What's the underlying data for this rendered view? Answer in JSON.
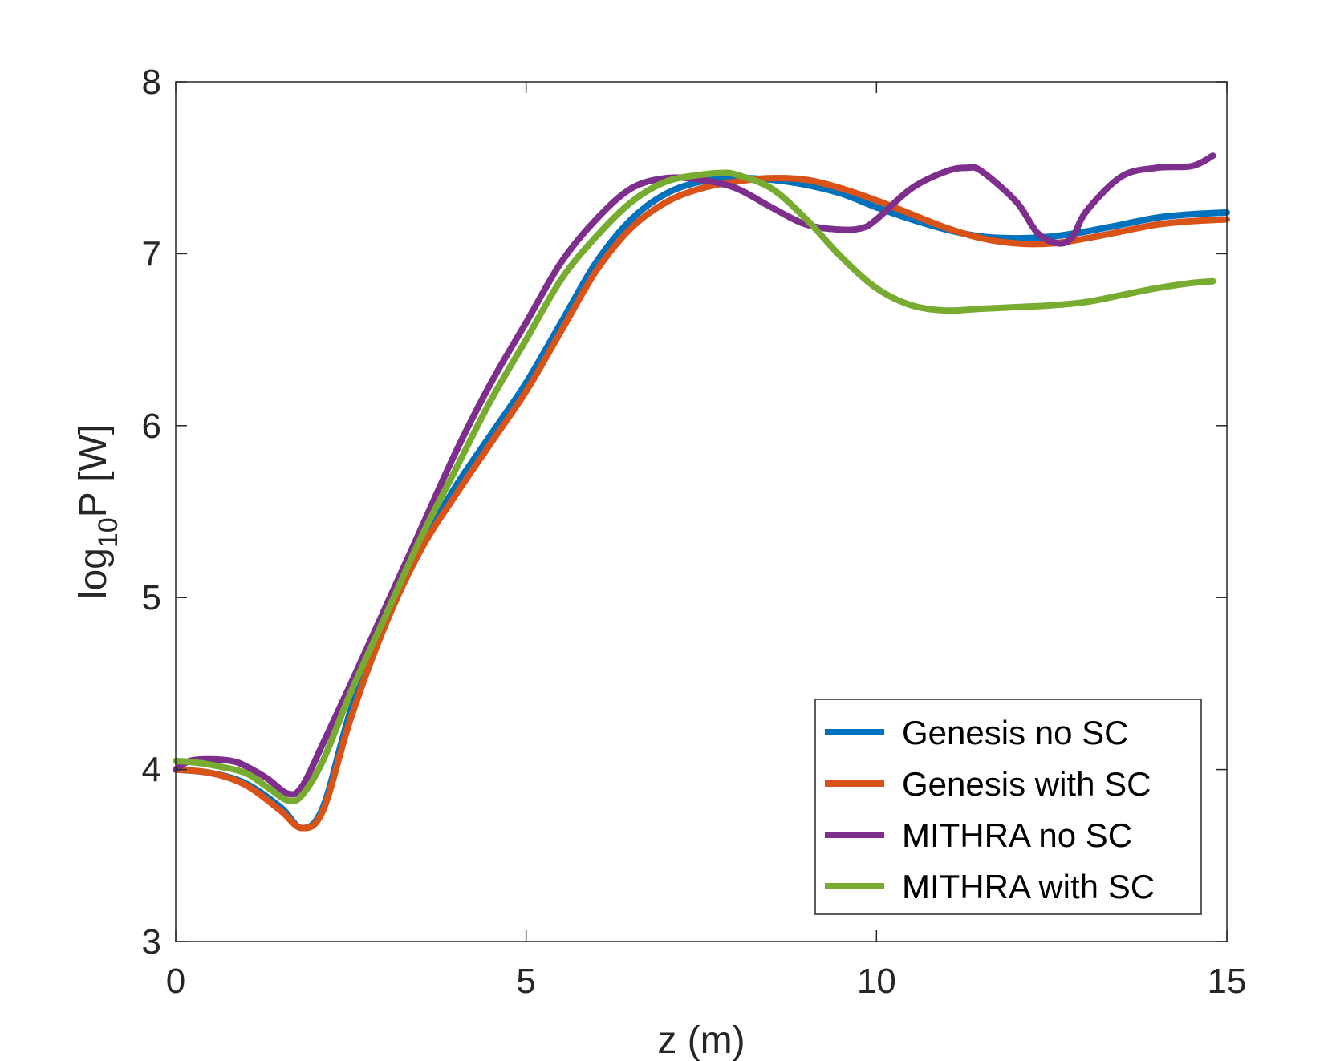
{
  "chart_data": {
    "type": "line",
    "title": "",
    "xlabel": "z (m)",
    "ylabel": {
      "prefix": "log",
      "subscript": "10",
      "suffix": "P [W]"
    },
    "xlim": [
      0,
      15
    ],
    "ylim": [
      3,
      8
    ],
    "xticks": [
      "0",
      "5",
      "10",
      "15"
    ],
    "yticks": [
      "3",
      "4",
      "5",
      "6",
      "7",
      "8"
    ],
    "grid": false,
    "legend_position": "bottom-right",
    "series": [
      {
        "name": "Genesis no SC",
        "color": "#0072BD",
        "x": [
          0,
          0.5,
          1.0,
          1.5,
          1.8,
          2.1,
          2.5,
          3.0,
          3.5,
          4.0,
          4.5,
          5.0,
          5.5,
          6.0,
          6.5,
          7.0,
          7.5,
          8.0,
          8.5,
          9.0,
          9.5,
          10.0,
          10.5,
          11.0,
          11.5,
          12.0,
          12.5,
          13.0,
          13.5,
          14.0,
          14.5,
          15.0
        ],
        "y": [
          4.0,
          3.98,
          3.92,
          3.78,
          3.66,
          3.78,
          4.35,
          4.9,
          5.3,
          5.65,
          5.95,
          6.25,
          6.6,
          6.95,
          7.2,
          7.35,
          7.42,
          7.44,
          7.43,
          7.4,
          7.35,
          7.27,
          7.2,
          7.14,
          7.1,
          7.09,
          7.1,
          7.13,
          7.17,
          7.21,
          7.23,
          7.24
        ]
      },
      {
        "name": "Genesis with SC",
        "color": "#D95319",
        "x": [
          0,
          0.5,
          1.0,
          1.5,
          1.8,
          2.1,
          2.5,
          3.0,
          3.5,
          4.0,
          4.5,
          5.0,
          5.5,
          6.0,
          6.5,
          7.0,
          7.5,
          8.0,
          8.5,
          9.0,
          9.5,
          10.0,
          10.5,
          11.0,
          11.5,
          12.0,
          12.5,
          13.0,
          13.5,
          14.0,
          14.5,
          15.0
        ],
        "y": [
          4.0,
          3.98,
          3.91,
          3.76,
          3.66,
          3.76,
          4.3,
          4.85,
          5.28,
          5.6,
          5.9,
          6.2,
          6.55,
          6.9,
          7.15,
          7.3,
          7.38,
          7.42,
          7.44,
          7.43,
          7.38,
          7.31,
          7.23,
          7.15,
          7.09,
          7.06,
          7.06,
          7.09,
          7.13,
          7.17,
          7.19,
          7.2
        ]
      },
      {
        "name": "MITHRA no SC",
        "color": "#7E2F8E",
        "x": [
          0,
          0.2,
          0.5,
          0.8,
          1.0,
          1.3,
          1.6,
          1.8,
          2.1,
          2.5,
          3.0,
          3.5,
          4.0,
          4.5,
          5.0,
          5.5,
          6.0,
          6.5,
          7.0,
          7.5,
          8.0,
          8.5,
          9.0,
          9.5,
          9.8,
          10.0,
          10.5,
          11.0,
          11.3,
          11.5,
          12.0,
          12.3,
          12.6,
          12.8,
          13.0,
          13.5,
          14.0,
          14.5,
          14.8
        ],
        "y": [
          4.0,
          4.05,
          4.06,
          4.05,
          4.02,
          3.95,
          3.86,
          3.9,
          4.15,
          4.5,
          4.95,
          5.4,
          5.85,
          6.25,
          6.6,
          6.95,
          7.2,
          7.38,
          7.44,
          7.43,
          7.38,
          7.27,
          7.17,
          7.14,
          7.15,
          7.2,
          7.38,
          7.48,
          7.5,
          7.48,
          7.3,
          7.12,
          7.06,
          7.1,
          7.25,
          7.45,
          7.5,
          7.51,
          7.57
        ]
      },
      {
        "name": "MITHRA with SC",
        "color": "#77AC30",
        "x": [
          0,
          0.3,
          0.6,
          1.0,
          1.3,
          1.6,
          1.8,
          2.1,
          2.5,
          3.0,
          3.5,
          4.0,
          4.5,
          5.0,
          5.5,
          6.0,
          6.5,
          7.0,
          7.5,
          7.8,
          8.0,
          8.5,
          9.0,
          9.5,
          10.0,
          10.5,
          11.0,
          11.5,
          12.0,
          12.5,
          13.0,
          13.5,
          14.0,
          14.5,
          14.8
        ],
        "y": [
          4.05,
          4.04,
          4.02,
          3.98,
          3.9,
          3.82,
          3.85,
          4.05,
          4.45,
          4.9,
          5.35,
          5.75,
          6.15,
          6.5,
          6.85,
          7.1,
          7.3,
          7.42,
          7.46,
          7.47,
          7.46,
          7.38,
          7.2,
          6.98,
          6.8,
          6.7,
          6.67,
          6.68,
          6.69,
          6.7,
          6.72,
          6.76,
          6.8,
          6.83,
          6.84
        ]
      }
    ]
  }
}
